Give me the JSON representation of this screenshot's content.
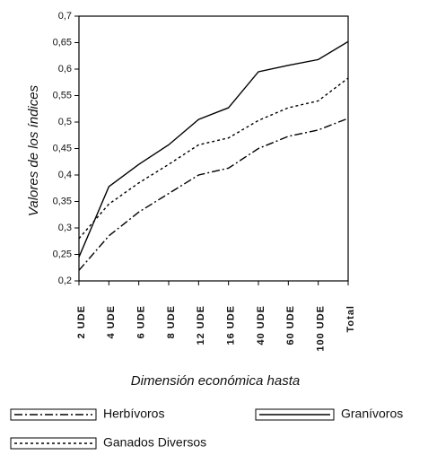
{
  "chart_data": {
    "type": "line",
    "ylabel": "Valores de los índices",
    "xlabel": "Dimensión económica hasta",
    "categories": [
      "2 UDE",
      "4 UDE",
      "6 UDE",
      "8 UDE",
      "12 UDE",
      "16 UDE",
      "40 UDE",
      "60 UDE",
      "100 UDE",
      "Total"
    ],
    "series": [
      {
        "name": "Herbívoros",
        "color": "#000000",
        "dash": "dashdot",
        "values": [
          0.22,
          0.285,
          0.33,
          0.365,
          0.4,
          0.413,
          0.45,
          0.473,
          0.485,
          0.507
        ]
      },
      {
        "name": "Granívoros",
        "color": "#000000",
        "dash": "solid",
        "values": [
          0.245,
          0.378,
          0.42,
          0.457,
          0.505,
          0.527,
          0.595,
          0.607,
          0.618,
          0.652
        ]
      },
      {
        "name": "Ganados Diversos",
        "color": "#000000",
        "dash": "dotted",
        "values": [
          0.28,
          0.345,
          0.385,
          0.42,
          0.457,
          0.47,
          0.503,
          0.527,
          0.54,
          0.583
        ]
      }
    ],
    "ylim": [
      0.2,
      0.7
    ],
    "yticks": [
      {
        "value": 0.2,
        "label": "0,2"
      },
      {
        "value": 0.25,
        "label": "0,25"
      },
      {
        "value": 0.3,
        "label": "0,3"
      },
      {
        "value": 0.35,
        "label": "0,35"
      },
      {
        "value": 0.4,
        "label": "0,4"
      },
      {
        "value": 0.45,
        "label": "0,45"
      },
      {
        "value": 0.5,
        "label": "0,5"
      },
      {
        "value": 0.55,
        "label": "0,55"
      },
      {
        "value": 0.6,
        "label": "0,6"
      },
      {
        "value": 0.65,
        "label": "0,65"
      },
      {
        "value": 0.7,
        "label": "0,7"
      }
    ],
    "grid": false
  }
}
